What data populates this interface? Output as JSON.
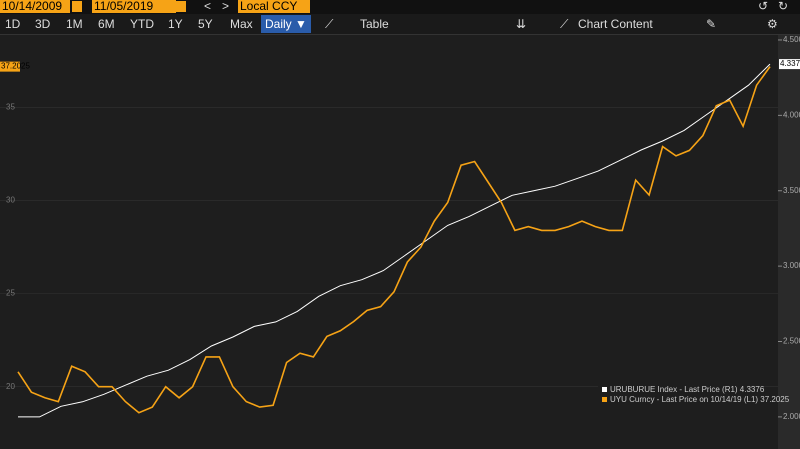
{
  "toolbar": {
    "start_date": "10/14/2009",
    "end_date": "11/05/2019",
    "prev": "<",
    "next": ">",
    "currency": "Local CCY",
    "ranges": [
      "1D",
      "3D",
      "1M",
      "6M",
      "YTD",
      "1Y",
      "5Y",
      "Max"
    ],
    "frequency": "Daily ▼",
    "table": "Table",
    "chart_content": "Chart Content"
  },
  "chart_data": {
    "type": "line",
    "series": [
      {
        "name": "URUBURUE Index - Last Price (R1) 4.3376",
        "color": "#ffffff",
        "axis": "y2",
        "last_label": "4.3376",
        "values": [
          2.0,
          2.0,
          2.07,
          2.1,
          2.15,
          2.21,
          2.27,
          2.31,
          2.38,
          2.47,
          2.53,
          2.6,
          2.63,
          2.7,
          2.8,
          2.87,
          2.91,
          2.97,
          3.07,
          3.17,
          3.27,
          3.33,
          3.4,
          3.47,
          3.5,
          3.53,
          3.58,
          3.63,
          3.7,
          3.77,
          3.83,
          3.9,
          4.0,
          4.1,
          4.2,
          4.34
        ]
      },
      {
        "name": "UYU Curncy - Last Price on 10/14/19 (L1) 37.2025",
        "color": "#f6a316",
        "axis": "y",
        "last_label": "37.2025",
        "values": [
          20.8,
          19.7,
          19.4,
          19.2,
          21.1,
          20.8,
          20.0,
          20.0,
          19.2,
          18.6,
          18.9,
          20.0,
          19.4,
          20.0,
          21.6,
          21.6,
          20.0,
          19.2,
          18.9,
          19.0,
          21.3,
          21.8,
          21.6,
          22.7,
          23.0,
          23.5,
          24.1,
          24.3,
          25.1,
          26.7,
          27.5,
          28.9,
          29.9,
          31.9,
          32.1,
          31.0,
          29.9,
          28.4,
          28.6,
          28.4,
          28.4,
          28.6,
          28.9,
          28.6,
          28.4,
          28.4,
          31.1,
          30.3,
          32.9,
          32.4,
          32.7,
          33.5,
          35.1,
          35.4,
          34.0,
          36.2,
          37.2
        ]
      }
    ],
    "ylim": [
      16.65,
      38.9
    ],
    "yticks": [
      20,
      25,
      30,
      35
    ],
    "y2lim": [
      1.787,
      4.533
    ],
    "y2ticks": [
      {
        "value": 2,
        "label": "2.000"
      },
      {
        "value": 2.5,
        "label": "2.500"
      },
      {
        "value": 3,
        "label": "3.000"
      },
      {
        "value": 3.5,
        "label": "3.500"
      },
      {
        "value": 4,
        "label": "4.000"
      },
      {
        "value": 4.5,
        "label": "4.500"
      }
    ],
    "grid": true
  }
}
